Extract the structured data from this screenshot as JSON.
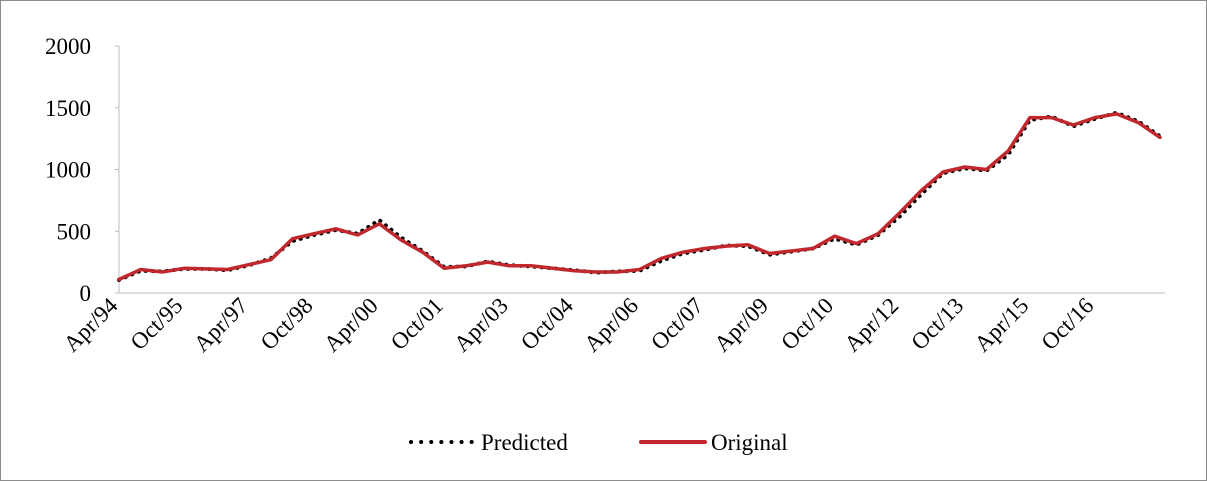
{
  "chart_data": {
    "type": "line",
    "categories": [
      "Apr/94",
      null,
      null,
      "Oct/95",
      null,
      null,
      "Apr/97",
      null,
      null,
      "Oct/98",
      null,
      null,
      "Apr/00",
      null,
      null,
      "Oct/01",
      null,
      null,
      "Apr/03",
      null,
      null,
      "Oct/04",
      null,
      null,
      "Apr/06",
      null,
      null,
      "Oct/07",
      null,
      null,
      "Apr/09",
      null,
      null,
      "Oct/10",
      null,
      null,
      "Apr/12",
      null,
      null,
      "Oct/13",
      null,
      null,
      "Apr/15",
      null,
      null,
      "Oct/16",
      null,
      null,
      null
    ],
    "series": [
      {
        "name": "Predicted",
        "color": "#000000",
        "dotted": true,
        "values": [
          105,
          180,
          175,
          195,
          195,
          185,
          225,
          280,
          420,
          470,
          510,
          480,
          590,
          450,
          340,
          210,
          215,
          255,
          225,
          215,
          200,
          185,
          165,
          175,
          180,
          260,
          320,
          350,
          385,
          380,
          310,
          335,
          360,
          440,
          390,
          470,
          620,
          800,
          970,
          1010,
          990,
          1120,
          1400,
          1430,
          1350,
          1410,
          1460,
          1390,
          1270
        ]
      },
      {
        "name": "Original",
        "color": "#c0282d",
        "dotted": false,
        "values": [
          110,
          190,
          170,
          200,
          195,
          190,
          230,
          270,
          440,
          480,
          520,
          470,
          560,
          430,
          330,
          200,
          220,
          250,
          220,
          220,
          200,
          180,
          170,
          170,
          190,
          280,
          330,
          360,
          380,
          390,
          320,
          340,
          360,
          460,
          400,
          480,
          650,
          830,
          980,
          1020,
          1000,
          1150,
          1420,
          1420,
          1360,
          1420,
          1450,
          1380,
          1260
        ]
      }
    ],
    "ylim": [
      0,
      2000
    ],
    "yticks": [
      0,
      500,
      1000,
      1500,
      2000
    ],
    "grid": false,
    "legend": "bottom"
  }
}
